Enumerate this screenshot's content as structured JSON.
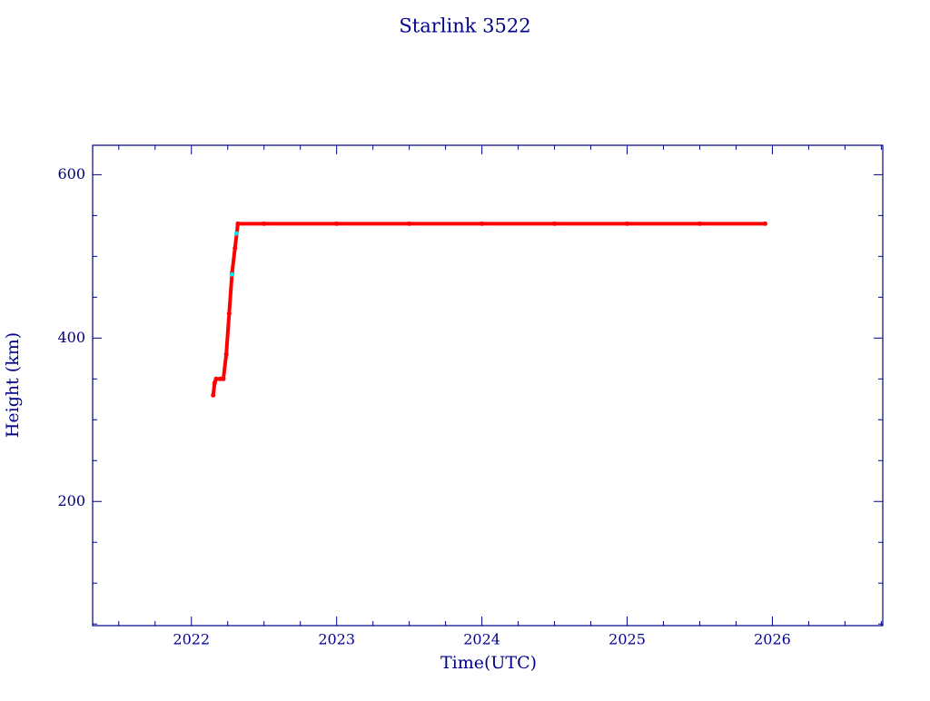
{
  "chart_data": {
    "type": "scatter",
    "title": "Starlink 3522",
    "x_label": "Time(UTC)",
    "y_label": "Height (km)",
    "xlim": [
      2021.32,
      2026.76
    ],
    "xticks": [
      2022,
      2023,
      2024,
      2025,
      2026
    ],
    "xminorticks": [
      2021.5,
      2021.75,
      2022.25,
      2022.5,
      2022.75,
      2023.25,
      2023.5,
      2023.75,
      2024.25,
      2024.5,
      2024.75,
      2025.25,
      2025.5,
      2025.75,
      2026.25,
      2026.5,
      2026.75
    ],
    "ylim": [
      48,
      636
    ],
    "yticks": [
      200,
      400,
      600
    ],
    "yminorticks": [
      50,
      100,
      150,
      250,
      300,
      350,
      450,
      500,
      550
    ],
    "axis_color": "#00008b",
    "series": [
      {
        "color": "#ff0000",
        "line": true,
        "x": [
          2022.15,
          2022.16,
          2022.17,
          2022.2,
          2022.22,
          2022.24,
          2022.26,
          2022.28,
          2022.3,
          2022.32,
          2022.5,
          2023,
          2023.5,
          2024,
          2024.5,
          2025,
          2025.5,
          2025.95
        ],
        "values": [
          330,
          345,
          350,
          350,
          350,
          380,
          430,
          480,
          510,
          540,
          540,
          540,
          540,
          540,
          540,
          540,
          540,
          540
        ]
      },
      {
        "color": "#00e5ee",
        "line": false,
        "x": [
          2022.28,
          2022.31
        ],
        "values": [
          478,
          528
        ]
      }
    ]
  }
}
